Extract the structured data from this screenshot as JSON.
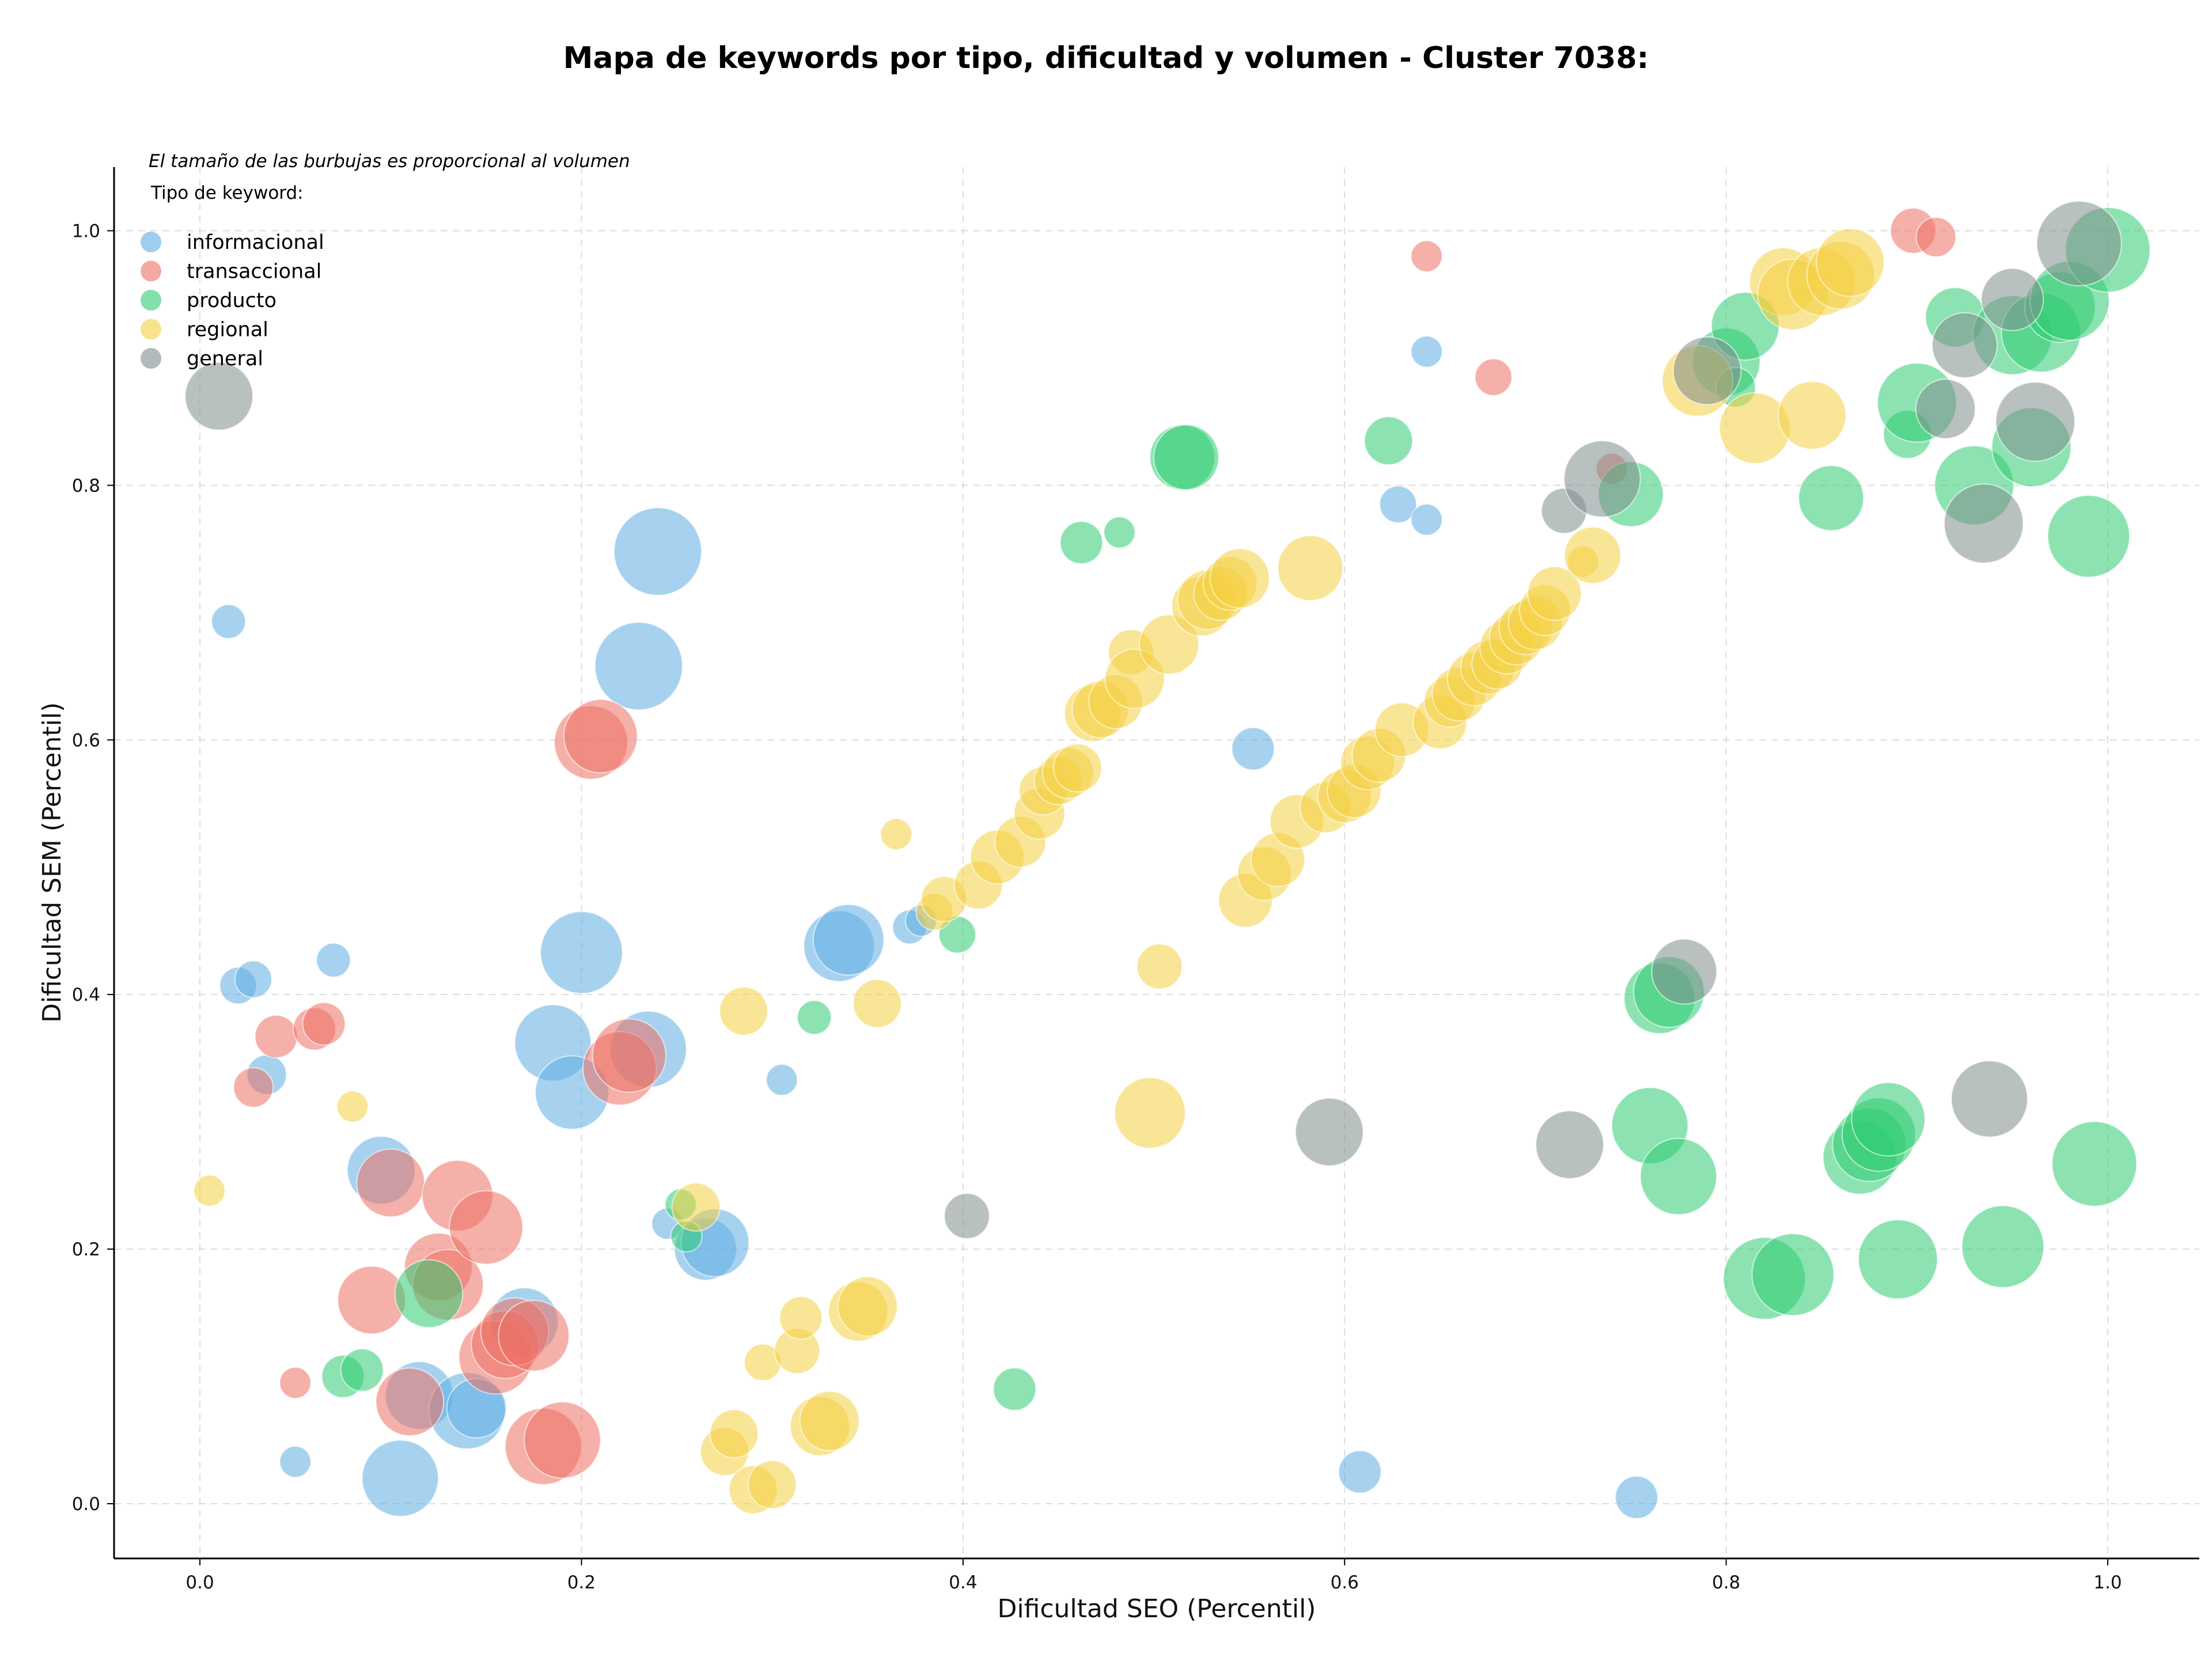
{
  "chart_data": {
    "type": "scatter",
    "title": "Mapa de keywords por tipo, dificultad y volumen - Cluster 7038:",
    "xlabel": "Dificultad SEO (Percentil)",
    "ylabel": "Dificultad SEM (Percentil)",
    "xlim": [
      -0.045,
      1.048
    ],
    "ylim": [
      -0.043,
      1.05
    ],
    "xticks": [
      "0.0",
      "0.2",
      "0.4",
      "0.6",
      "0.8",
      "1.0"
    ],
    "yticks": [
      "0.0",
      "0.2",
      "0.4",
      "0.6",
      "0.8",
      "1.0"
    ],
    "grid": true,
    "size_note": "El tamaño de las burbujas es proporcional al volumen",
    "legend_title": "Tipo de keyword:",
    "legend_position": "top-left",
    "series": [
      {
        "name": "informacional",
        "color": "#5DADE2",
        "points": [
          [
            0.015,
            0.693,
            12
          ],
          [
            0.02,
            0.407,
            13
          ],
          [
            0.028,
            0.412,
            13
          ],
          [
            0.035,
            0.337,
            14
          ],
          [
            0.05,
            0.033,
            11
          ],
          [
            0.07,
            0.427,
            12
          ],
          [
            0.095,
            0.262,
            24
          ],
          [
            0.105,
            0.02,
            27
          ],
          [
            0.115,
            0.085,
            24
          ],
          [
            0.14,
            0.073,
            27
          ],
          [
            0.145,
            0.075,
            21
          ],
          [
            0.17,
            0.143,
            24
          ],
          [
            0.185,
            0.362,
            27
          ],
          [
            0.195,
            0.323,
            26
          ],
          [
            0.2,
            0.433,
            29
          ],
          [
            0.23,
            0.658,
            31
          ],
          [
            0.235,
            0.357,
            27
          ],
          [
            0.24,
            0.748,
            31
          ],
          [
            0.245,
            0.22,
            11
          ],
          [
            0.265,
            0.2,
            22
          ],
          [
            0.27,
            0.205,
            24
          ],
          [
            0.305,
            0.333,
            11
          ],
          [
            0.335,
            0.438,
            25
          ],
          [
            0.34,
            0.443,
            25
          ],
          [
            0.372,
            0.453,
            12
          ],
          [
            0.378,
            0.458,
            11
          ],
          [
            0.552,
            0.593,
            15
          ],
          [
            0.608,
            0.025,
            15
          ],
          [
            0.628,
            0.785,
            13
          ],
          [
            0.643,
            0.905,
            11
          ],
          [
            0.643,
            0.773,
            11
          ],
          [
            0.753,
            0.005,
            15
          ]
        ]
      },
      {
        "name": "transaccional",
        "color": "#EC7063",
        "points": [
          [
            0.028,
            0.327,
            14
          ],
          [
            0.04,
            0.367,
            15
          ],
          [
            0.05,
            0.095,
            11
          ],
          [
            0.06,
            0.373,
            15
          ],
          [
            0.065,
            0.377,
            15
          ],
          [
            0.09,
            0.16,
            24
          ],
          [
            0.1,
            0.252,
            24
          ],
          [
            0.11,
            0.08,
            24
          ],
          [
            0.125,
            0.186,
            24
          ],
          [
            0.13,
            0.172,
            25
          ],
          [
            0.135,
            0.242,
            25
          ],
          [
            0.15,
            0.217,
            26
          ],
          [
            0.155,
            0.115,
            26
          ],
          [
            0.16,
            0.125,
            24
          ],
          [
            0.165,
            0.135,
            24
          ],
          [
            0.175,
            0.132,
            25
          ],
          [
            0.18,
            0.045,
            27
          ],
          [
            0.19,
            0.05,
            27
          ],
          [
            0.205,
            0.598,
            26
          ],
          [
            0.21,
            0.603,
            26
          ],
          [
            0.22,
            0.342,
            26
          ],
          [
            0.225,
            0.352,
            26
          ],
          [
            0.643,
            0.98,
            11
          ],
          [
            0.678,
            0.885,
            13
          ],
          [
            0.74,
            0.813,
            11
          ],
          [
            0.898,
            1.0,
            16
          ],
          [
            0.91,
            0.995,
            14
          ]
        ]
      },
      {
        "name": "producto",
        "color": "#2ECC71",
        "points": [
          [
            0.075,
            0.1,
            15
          ],
          [
            0.085,
            0.105,
            15
          ],
          [
            0.12,
            0.165,
            24
          ],
          [
            0.252,
            0.235,
            11
          ],
          [
            0.255,
            0.21,
            11
          ],
          [
            0.322,
            0.382,
            12
          ],
          [
            0.397,
            0.447,
            13
          ],
          [
            0.427,
            0.09,
            15
          ],
          [
            0.462,
            0.755,
            15
          ],
          [
            0.482,
            0.763,
            11
          ],
          [
            0.515,
            0.822,
            23
          ],
          [
            0.517,
            0.822,
            23
          ],
          [
            0.623,
            0.835,
            17
          ],
          [
            0.75,
            0.793,
            23
          ],
          [
            0.76,
            0.297,
            27
          ],
          [
            0.765,
            0.397,
            25
          ],
          [
            0.77,
            0.402,
            25
          ],
          [
            0.775,
            0.257,
            27
          ],
          [
            0.8,
            0.897,
            24
          ],
          [
            0.805,
            0.877,
            14
          ],
          [
            0.81,
            0.925,
            24
          ],
          [
            0.82,
            0.177,
            29
          ],
          [
            0.835,
            0.18,
            29
          ],
          [
            0.855,
            0.79,
            23
          ],
          [
            0.87,
            0.272,
            26
          ],
          [
            0.875,
            0.282,
            26
          ],
          [
            0.88,
            0.29,
            26
          ],
          [
            0.885,
            0.302,
            26
          ],
          [
            0.89,
            0.192,
            28
          ],
          [
            0.895,
            0.84,
            17
          ],
          [
            0.9,
            0.865,
            28
          ],
          [
            0.92,
            0.932,
            21
          ],
          [
            0.93,
            0.8,
            28
          ],
          [
            0.95,
            0.918,
            28
          ],
          [
            0.96,
            0.83,
            28
          ],
          [
            0.965,
            0.92,
            28
          ],
          [
            0.975,
            0.94,
            25
          ],
          [
            0.98,
            0.945,
            28
          ],
          [
            0.99,
            0.76,
            29
          ],
          [
            0.993,
            0.267,
            30
          ],
          [
            1.0,
            0.985,
            30
          ],
          [
            0.945,
            0.202,
            29
          ]
        ]
      },
      {
        "name": "regional",
        "color": "#F4D03F",
        "points": [
          [
            0.005,
            0.246,
            11
          ],
          [
            0.08,
            0.312,
            11
          ],
          [
            0.26,
            0.233,
            17
          ],
          [
            0.275,
            0.041,
            17
          ],
          [
            0.28,
            0.055,
            17
          ],
          [
            0.285,
            0.387,
            17
          ],
          [
            0.29,
            0.011,
            17
          ],
          [
            0.295,
            0.111,
            13
          ],
          [
            0.3,
            0.015,
            17
          ],
          [
            0.313,
            0.12,
            16
          ],
          [
            0.315,
            0.146,
            15
          ],
          [
            0.325,
            0.061,
            21
          ],
          [
            0.33,
            0.065,
            21
          ],
          [
            0.345,
            0.151,
            21
          ],
          [
            0.35,
            0.155,
            21
          ],
          [
            0.355,
            0.393,
            17
          ],
          [
            0.365,
            0.526,
            11
          ],
          [
            0.385,
            0.465,
            13
          ],
          [
            0.39,
            0.475,
            16
          ],
          [
            0.408,
            0.486,
            17
          ],
          [
            0.418,
            0.508,
            19
          ],
          [
            0.43,
            0.52,
            18
          ],
          [
            0.44,
            0.542,
            18
          ],
          [
            0.442,
            0.56,
            17
          ],
          [
            0.45,
            0.568,
            17
          ],
          [
            0.455,
            0.574,
            18
          ],
          [
            0.46,
            0.578,
            17
          ],
          [
            0.468,
            0.621,
            20
          ],
          [
            0.472,
            0.624,
            20
          ],
          [
            0.48,
            0.63,
            19
          ],
          [
            0.488,
            0.669,
            16
          ],
          [
            0.49,
            0.648,
            21
          ],
          [
            0.498,
            0.307,
            25
          ],
          [
            0.503,
            0.422,
            16
          ],
          [
            0.508,
            0.675,
            21
          ],
          [
            0.525,
            0.705,
            21
          ],
          [
            0.528,
            0.71,
            21
          ],
          [
            0.535,
            0.715,
            19
          ],
          [
            0.54,
            0.723,
            19
          ],
          [
            0.545,
            0.727,
            21
          ],
          [
            0.548,
            0.474,
            19
          ],
          [
            0.558,
            0.495,
            19
          ],
          [
            0.565,
            0.506,
            19
          ],
          [
            0.575,
            0.536,
            19
          ],
          [
            0.582,
            0.735,
            23
          ],
          [
            0.59,
            0.547,
            18
          ],
          [
            0.6,
            0.556,
            19
          ],
          [
            0.605,
            0.56,
            19
          ],
          [
            0.612,
            0.582,
            19
          ],
          [
            0.618,
            0.588,
            19
          ],
          [
            0.63,
            0.608,
            19
          ],
          [
            0.65,
            0.614,
            19
          ],
          [
            0.655,
            0.63,
            18
          ],
          [
            0.66,
            0.636,
            19
          ],
          [
            0.668,
            0.648,
            19
          ],
          [
            0.675,
            0.657,
            19
          ],
          [
            0.68,
            0.66,
            18
          ],
          [
            0.685,
            0.673,
            19
          ],
          [
            0.69,
            0.68,
            19
          ],
          [
            0.695,
            0.688,
            19
          ],
          [
            0.7,
            0.692,
            19
          ],
          [
            0.705,
            0.702,
            18
          ],
          [
            0.71,
            0.715,
            19
          ],
          [
            0.725,
            0.74,
            11
          ],
          [
            0.73,
            0.745,
            20
          ],
          [
            0.785,
            0.882,
            25
          ],
          [
            0.815,
            0.845,
            25
          ],
          [
            0.83,
            0.96,
            24
          ],
          [
            0.835,
            0.95,
            25
          ],
          [
            0.845,
            0.855,
            24
          ],
          [
            0.85,
            0.96,
            24
          ],
          [
            0.86,
            0.965,
            24
          ],
          [
            0.865,
            0.975,
            24
          ]
        ]
      },
      {
        "name": "general",
        "color": "#7F8C8D",
        "points": [
          [
            0.01,
            0.87,
            24
          ],
          [
            0.402,
            0.226,
            16
          ],
          [
            0.592,
            0.292,
            24
          ],
          [
            0.715,
            0.78,
            16
          ],
          [
            0.718,
            0.282,
            24
          ],
          [
            0.735,
            0.805,
            27
          ],
          [
            0.778,
            0.418,
            23
          ],
          [
            0.79,
            0.89,
            24
          ],
          [
            0.915,
            0.86,
            21
          ],
          [
            0.925,
            0.91,
            23
          ],
          [
            0.935,
            0.77,
            28
          ],
          [
            0.938,
            0.318,
            27
          ],
          [
            0.95,
            0.946,
            22
          ],
          [
            0.962,
            0.85,
            28
          ],
          [
            0.985,
            0.99,
            30
          ]
        ]
      }
    ]
  }
}
